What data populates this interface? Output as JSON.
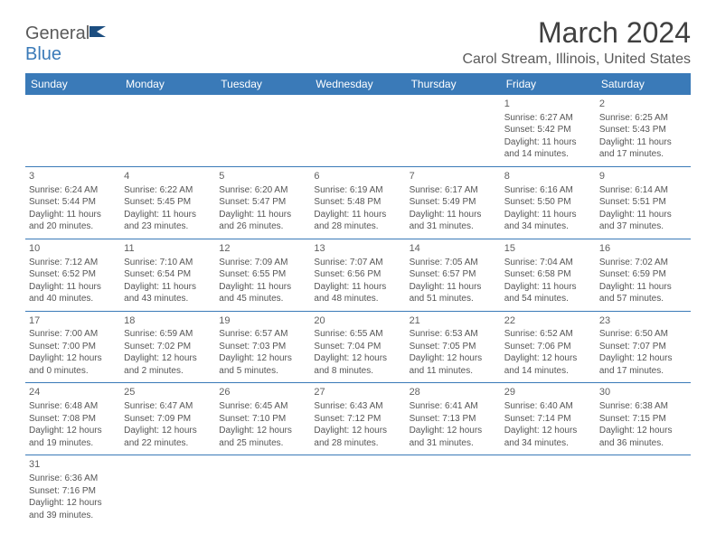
{
  "brand": {
    "name1": "General",
    "name2": "Blue"
  },
  "title": {
    "month": "March 2024",
    "location": "Carol Stream, Illinois, United States"
  },
  "colors": {
    "header_bg": "#3a7ab8",
    "header_fg": "#ffffff",
    "cell_border": "#3a7ab8",
    "text": "#555555",
    "title_color": "#404040"
  },
  "weekdays": [
    "Sunday",
    "Monday",
    "Tuesday",
    "Wednesday",
    "Thursday",
    "Friday",
    "Saturday"
  ],
  "weeks": [
    [
      null,
      null,
      null,
      null,
      null,
      {
        "n": "1",
        "sr": "Sunrise: 6:27 AM",
        "ss": "Sunset: 5:42 PM",
        "d1": "Daylight: 11 hours",
        "d2": "and 14 minutes."
      },
      {
        "n": "2",
        "sr": "Sunrise: 6:25 AM",
        "ss": "Sunset: 5:43 PM",
        "d1": "Daylight: 11 hours",
        "d2": "and 17 minutes."
      }
    ],
    [
      {
        "n": "3",
        "sr": "Sunrise: 6:24 AM",
        "ss": "Sunset: 5:44 PM",
        "d1": "Daylight: 11 hours",
        "d2": "and 20 minutes."
      },
      {
        "n": "4",
        "sr": "Sunrise: 6:22 AM",
        "ss": "Sunset: 5:45 PM",
        "d1": "Daylight: 11 hours",
        "d2": "and 23 minutes."
      },
      {
        "n": "5",
        "sr": "Sunrise: 6:20 AM",
        "ss": "Sunset: 5:47 PM",
        "d1": "Daylight: 11 hours",
        "d2": "and 26 minutes."
      },
      {
        "n": "6",
        "sr": "Sunrise: 6:19 AM",
        "ss": "Sunset: 5:48 PM",
        "d1": "Daylight: 11 hours",
        "d2": "and 28 minutes."
      },
      {
        "n": "7",
        "sr": "Sunrise: 6:17 AM",
        "ss": "Sunset: 5:49 PM",
        "d1": "Daylight: 11 hours",
        "d2": "and 31 minutes."
      },
      {
        "n": "8",
        "sr": "Sunrise: 6:16 AM",
        "ss": "Sunset: 5:50 PM",
        "d1": "Daylight: 11 hours",
        "d2": "and 34 minutes."
      },
      {
        "n": "9",
        "sr": "Sunrise: 6:14 AM",
        "ss": "Sunset: 5:51 PM",
        "d1": "Daylight: 11 hours",
        "d2": "and 37 minutes."
      }
    ],
    [
      {
        "n": "10",
        "sr": "Sunrise: 7:12 AM",
        "ss": "Sunset: 6:52 PM",
        "d1": "Daylight: 11 hours",
        "d2": "and 40 minutes."
      },
      {
        "n": "11",
        "sr": "Sunrise: 7:10 AM",
        "ss": "Sunset: 6:54 PM",
        "d1": "Daylight: 11 hours",
        "d2": "and 43 minutes."
      },
      {
        "n": "12",
        "sr": "Sunrise: 7:09 AM",
        "ss": "Sunset: 6:55 PM",
        "d1": "Daylight: 11 hours",
        "d2": "and 45 minutes."
      },
      {
        "n": "13",
        "sr": "Sunrise: 7:07 AM",
        "ss": "Sunset: 6:56 PM",
        "d1": "Daylight: 11 hours",
        "d2": "and 48 minutes."
      },
      {
        "n": "14",
        "sr": "Sunrise: 7:05 AM",
        "ss": "Sunset: 6:57 PM",
        "d1": "Daylight: 11 hours",
        "d2": "and 51 minutes."
      },
      {
        "n": "15",
        "sr": "Sunrise: 7:04 AM",
        "ss": "Sunset: 6:58 PM",
        "d1": "Daylight: 11 hours",
        "d2": "and 54 minutes."
      },
      {
        "n": "16",
        "sr": "Sunrise: 7:02 AM",
        "ss": "Sunset: 6:59 PM",
        "d1": "Daylight: 11 hours",
        "d2": "and 57 minutes."
      }
    ],
    [
      {
        "n": "17",
        "sr": "Sunrise: 7:00 AM",
        "ss": "Sunset: 7:00 PM",
        "d1": "Daylight: 12 hours",
        "d2": "and 0 minutes."
      },
      {
        "n": "18",
        "sr": "Sunrise: 6:59 AM",
        "ss": "Sunset: 7:02 PM",
        "d1": "Daylight: 12 hours",
        "d2": "and 2 minutes."
      },
      {
        "n": "19",
        "sr": "Sunrise: 6:57 AM",
        "ss": "Sunset: 7:03 PM",
        "d1": "Daylight: 12 hours",
        "d2": "and 5 minutes."
      },
      {
        "n": "20",
        "sr": "Sunrise: 6:55 AM",
        "ss": "Sunset: 7:04 PM",
        "d1": "Daylight: 12 hours",
        "d2": "and 8 minutes."
      },
      {
        "n": "21",
        "sr": "Sunrise: 6:53 AM",
        "ss": "Sunset: 7:05 PM",
        "d1": "Daylight: 12 hours",
        "d2": "and 11 minutes."
      },
      {
        "n": "22",
        "sr": "Sunrise: 6:52 AM",
        "ss": "Sunset: 7:06 PM",
        "d1": "Daylight: 12 hours",
        "d2": "and 14 minutes."
      },
      {
        "n": "23",
        "sr": "Sunrise: 6:50 AM",
        "ss": "Sunset: 7:07 PM",
        "d1": "Daylight: 12 hours",
        "d2": "and 17 minutes."
      }
    ],
    [
      {
        "n": "24",
        "sr": "Sunrise: 6:48 AM",
        "ss": "Sunset: 7:08 PM",
        "d1": "Daylight: 12 hours",
        "d2": "and 19 minutes."
      },
      {
        "n": "25",
        "sr": "Sunrise: 6:47 AM",
        "ss": "Sunset: 7:09 PM",
        "d1": "Daylight: 12 hours",
        "d2": "and 22 minutes."
      },
      {
        "n": "26",
        "sr": "Sunrise: 6:45 AM",
        "ss": "Sunset: 7:10 PM",
        "d1": "Daylight: 12 hours",
        "d2": "and 25 minutes."
      },
      {
        "n": "27",
        "sr": "Sunrise: 6:43 AM",
        "ss": "Sunset: 7:12 PM",
        "d1": "Daylight: 12 hours",
        "d2": "and 28 minutes."
      },
      {
        "n": "28",
        "sr": "Sunrise: 6:41 AM",
        "ss": "Sunset: 7:13 PM",
        "d1": "Daylight: 12 hours",
        "d2": "and 31 minutes."
      },
      {
        "n": "29",
        "sr": "Sunrise: 6:40 AM",
        "ss": "Sunset: 7:14 PM",
        "d1": "Daylight: 12 hours",
        "d2": "and 34 minutes."
      },
      {
        "n": "30",
        "sr": "Sunrise: 6:38 AM",
        "ss": "Sunset: 7:15 PM",
        "d1": "Daylight: 12 hours",
        "d2": "and 36 minutes."
      }
    ],
    [
      {
        "n": "31",
        "sr": "Sunrise: 6:36 AM",
        "ss": "Sunset: 7:16 PM",
        "d1": "Daylight: 12 hours",
        "d2": "and 39 minutes."
      },
      null,
      null,
      null,
      null,
      null,
      null
    ]
  ]
}
